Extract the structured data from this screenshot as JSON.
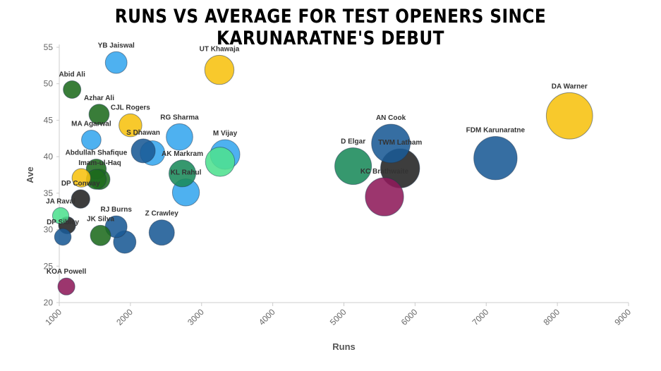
{
  "chart_data": {
    "type": "scatter",
    "title": "RUNS VS AVERAGE FOR TEST OPENERS SINCE KARUNARATNE'S DEBUT",
    "xlabel": "Runs",
    "ylabel": "Ave",
    "xlim": [
      1000,
      9000
    ],
    "ylim": [
      20,
      55
    ],
    "xticks": [
      1000,
      2000,
      3000,
      4000,
      5000,
      6000,
      7000,
      8000,
      9000
    ],
    "yticks": [
      20,
      25,
      30,
      35,
      40,
      45,
      50,
      55
    ],
    "grid": false,
    "legend": "none",
    "points": [
      {
        "label": "YB Jaiswal",
        "runs": 1800,
        "ave": 52.9,
        "color": "#36a6ee"
      },
      {
        "label": "UT Khawaja",
        "runs": 3250,
        "ave": 51.9,
        "color": "#f7c10f"
      },
      {
        "label": "Abid Ali",
        "runs": 1180,
        "ave": 49.2,
        "color": "#1e6b1e"
      },
      {
        "label": "Azhar Ali",
        "runs": 1560,
        "ave": 45.8,
        "color": "#1e6b1e"
      },
      {
        "label": "CJL Rogers",
        "runs": 2000,
        "ave": 44.3,
        "color": "#f7c10f"
      },
      {
        "label": "MA Agarwal",
        "runs": 1450,
        "ave": 42.3,
        "color": "#36a6ee"
      },
      {
        "label": "RG Sharma",
        "runs": 2690,
        "ave": 42.7,
        "color": "#36a6ee"
      },
      {
        "label": "S Dhawan",
        "runs": 2180,
        "ave": 40.8,
        "color": "#1a5a95"
      },
      {
        "label": "",
        "runs": 2310,
        "ave": 40.5,
        "color": "#36a6ee"
      },
      {
        "label": "M Vijay",
        "runs": 3330,
        "ave": 40.3,
        "color": "#36a6ee"
      },
      {
        "label": "",
        "runs": 3260,
        "ave": 39.3,
        "color": "#4fe08f"
      },
      {
        "label": "Abdullah Shafique",
        "runs": 1520,
        "ave": 38.3,
        "color": "#1e6b1e"
      },
      {
        "label": "AK Markram",
        "runs": 2730,
        "ave": 37.7,
        "color": "#1a8a5a"
      },
      {
        "label": "Imam-ul-Haq",
        "runs": 1570,
        "ave": 36.9,
        "color": "#1e6b1e"
      },
      {
        "label": "KL Rahul",
        "runs": 2780,
        "ave": 35.1,
        "color": "#36a6ee"
      },
      {
        "label": "",
        "runs": 1310,
        "ave": 37.1,
        "color": "#f7c10f"
      },
      {
        "label": "",
        "runs": 1520,
        "ave": 36.9,
        "color": "#1e6b1e"
      },
      {
        "label": "DP Conway",
        "runs": 1300,
        "ave": 34.2,
        "color": "#222222"
      },
      {
        "label": "JA Raval",
        "runs": 1020,
        "ave": 31.9,
        "color": "#4fe08f"
      },
      {
        "label": "",
        "runs": 1110,
        "ave": 30.6,
        "color": "#222222"
      },
      {
        "label": "DP Sibley",
        "runs": 1050,
        "ave": 29.0,
        "color": "#1a5a95"
      },
      {
        "label": "RJ Burns",
        "runs": 1800,
        "ave": 30.4,
        "color": "#1a5a95"
      },
      {
        "label": "JK Silva",
        "runs": 1580,
        "ave": 29.2,
        "color": "#1e6b1e"
      },
      {
        "label": "",
        "runs": 1920,
        "ave": 28.3,
        "color": "#1a5a95"
      },
      {
        "label": "Z Crawley",
        "runs": 2440,
        "ave": 29.6,
        "color": "#1a5a95"
      },
      {
        "label": "KOA Powell",
        "runs": 1100,
        "ave": 22.2,
        "color": "#8e1a5a"
      },
      {
        "label": "D Elgar",
        "runs": 5130,
        "ave": 38.7,
        "color": "#1a8a5a"
      },
      {
        "label": "AN Cook",
        "runs": 5660,
        "ave": 41.8,
        "color": "#1a5a95"
      },
      {
        "label": "TWM Latham",
        "runs": 5790,
        "ave": 38.4,
        "color": "#222222"
      },
      {
        "label": "KC Brathwaite",
        "runs": 5570,
        "ave": 34.5,
        "color": "#8e1a5a"
      },
      {
        "label": "FDM Karunaratne",
        "runs": 7130,
        "ave": 39.8,
        "color": "#1a5a95"
      },
      {
        "label": "DA Warner",
        "runs": 8170,
        "ave": 45.6,
        "color": "#f7c10f"
      }
    ]
  }
}
